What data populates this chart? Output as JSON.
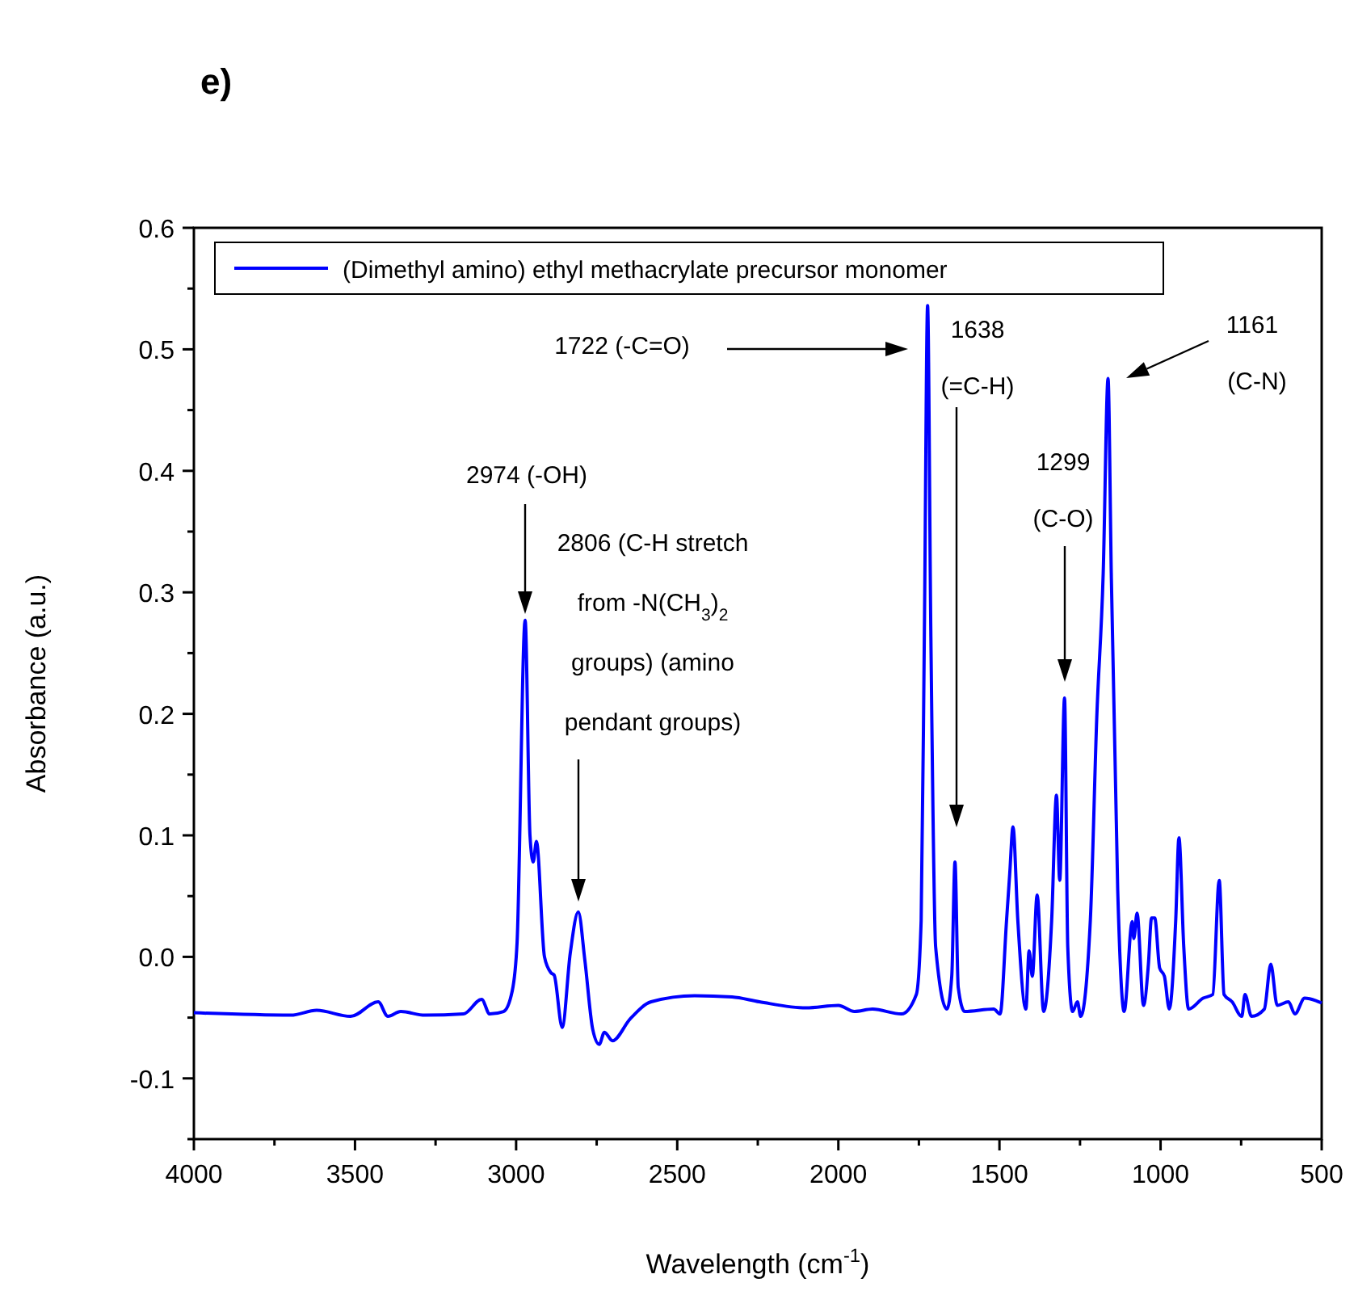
{
  "chart_data": {
    "type": "line",
    "title": "e)",
    "xlabel": "Wavelength (cm$^{-1}$)",
    "ylabel": "Absorbance (a.u.)",
    "xlim": [
      4000,
      500
    ],
    "ylim": [
      -0.15,
      0.6
    ],
    "xticks": [
      4000,
      {
        "value": 3750,
        "label": null
      },
      3500,
      {
        "value": 3250,
        "label": null
      },
      3000,
      {
        "value": 2750,
        "label": null
      },
      2500,
      {
        "value": 2250,
        "label": null
      },
      2000,
      {
        "value": 1750,
        "label": null
      },
      1500,
      {
        "value": 1250,
        "label": null
      },
      1000,
      {
        "value": 750,
        "label": null
      },
      500
    ],
    "yticks": [
      {
        "value": -0.15,
        "label": null
      },
      -0.1,
      {
        "value": -0.05,
        "label": null
      },
      {
        "value": 0,
        "label": "0.0"
      },
      {
        "value": 0.05,
        "label": null
      },
      0.1,
      {
        "value": 0.15,
        "label": null
      },
      0.2,
      {
        "value": 0.25,
        "label": null
      },
      0.3,
      {
        "value": 0.35,
        "label": null
      },
      0.4,
      {
        "value": 0.45,
        "label": null
      },
      0.5,
      {
        "value": 0.55,
        "label": null
      },
      0.6
    ],
    "grid": false,
    "legend": "top",
    "line_style": "solid",
    "marker": "none",
    "series": [
      {
        "name": "(Dimethyl amino) ethyl methacrylate precursor monomer",
        "color": "#0000ff",
        "x": [
          4000,
          3699,
          3619,
          3514,
          3428,
          3398,
          3358,
          3283,
          3163,
          3107,
          3082,
          3039,
          3012,
          2997,
          2972,
          2957,
          2947,
          2937,
          2912,
          2892,
          2882,
          2857,
          2832,
          2807,
          2787,
          2762,
          2742,
          2726,
          2701,
          2646,
          2581,
          2446,
          2330,
          2245,
          2100,
          2000,
          1950,
          1894,
          1804,
          1758,
          1743,
          1733,
          1723,
          1713,
          1698,
          1663,
          1648,
          1638,
          1628,
          1608,
          1518,
          1498,
          1478,
          1468,
          1458,
          1443,
          1418,
          1408,
          1398,
          1383,
          1363,
          1338,
          1323,
          1313,
          1298,
          1288,
          1273,
          1258,
          1248,
          1218,
          1198,
          1178,
          1163,
          1153,
          1133,
          1113,
          1088,
          1083,
          1073,
          1053,
          1038,
          1028,
          1018,
          1003,
          988,
          973,
          953,
          943,
          928,
          913,
          868,
          838,
          818,
          803,
          778,
          748,
          738,
          718,
          678,
          658,
          638,
          603,
          583,
          553,
          518,
          500
        ],
        "values": [
          -0.046,
          -0.048,
          -0.044,
          -0.049,
          -0.037,
          -0.049,
          -0.045,
          -0.048,
          -0.047,
          -0.035,
          -0.047,
          -0.045,
          -0.028,
          0.012,
          0.277,
          0.1,
          0.078,
          0.095,
          0.0,
          -0.013,
          -0.015,
          -0.058,
          0.003,
          0.037,
          -0.002,
          -0.06,
          -0.072,
          -0.062,
          -0.069,
          -0.051,
          -0.037,
          -0.032,
          -0.033,
          -0.037,
          -0.042,
          -0.04,
          -0.045,
          -0.043,
          -0.047,
          -0.031,
          0.03,
          0.268,
          0.536,
          0.268,
          0.008,
          -0.043,
          -0.016,
          0.078,
          -0.025,
          -0.045,
          -0.043,
          -0.047,
          0.03,
          0.069,
          0.107,
          0.03,
          -0.043,
          0.005,
          -0.016,
          0.051,
          -0.045,
          0.03,
          0.133,
          0.063,
          0.213,
          0.008,
          -0.045,
          -0.037,
          -0.049,
          0.03,
          0.197,
          0.316,
          0.476,
          0.316,
          0.055,
          -0.045,
          0.029,
          0.015,
          0.036,
          -0.04,
          -0.007,
          0.032,
          0.032,
          -0.009,
          -0.016,
          -0.043,
          0.03,
          0.098,
          0.008,
          -0.043,
          -0.034,
          -0.031,
          0.063,
          -0.031,
          -0.037,
          -0.049,
          -0.031,
          -0.049,
          -0.043,
          -0.006,
          -0.04,
          -0.037,
          -0.047,
          -0.034,
          -0.036,
          -0.038
        ]
      }
    ],
    "annotations": [
      "2974 (-OH)",
      "2806 (C-H stretch",
      "from -N(CH$_{3}$)$_{2}$",
      "groups) (amino",
      "pendant groups)",
      "1722 (-C=O)",
      "1638",
      "(=C-H)",
      "1299",
      "(C-O)",
      "1161",
      "(C-N)"
    ]
  }
}
